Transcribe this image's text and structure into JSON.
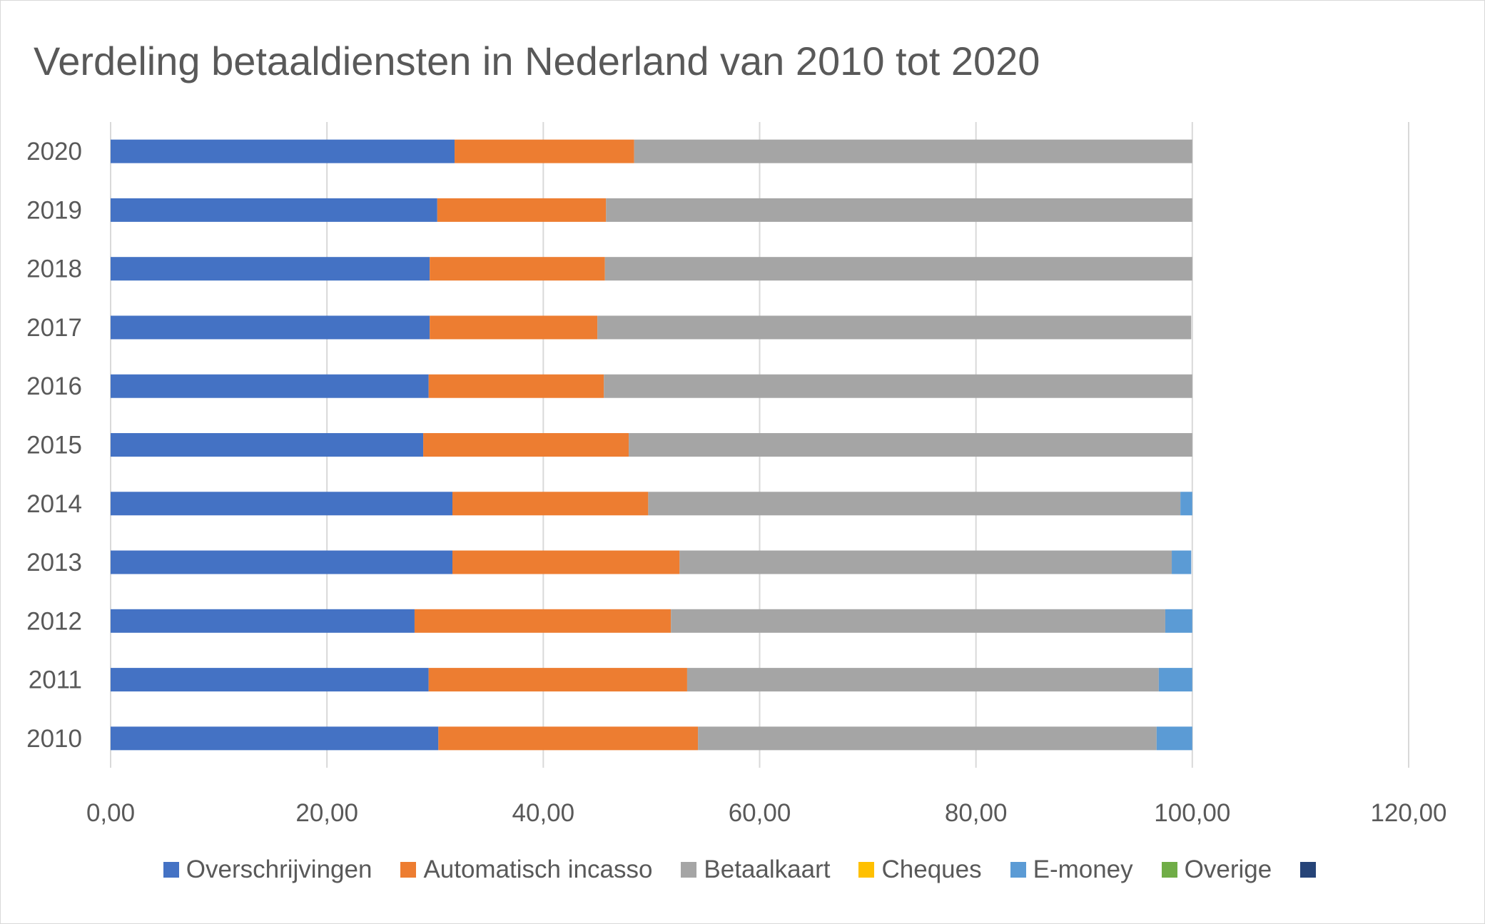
{
  "chart_data": {
    "type": "bar",
    "orientation": "horizontal",
    "stacked": true,
    "title": "Verdeling betaaldiensten in Nederland van 2010 tot 2020",
    "categories": [
      "2010",
      "2011",
      "2012",
      "2013",
      "2014",
      "2015",
      "2016",
      "2017",
      "2018",
      "2019",
      "2020"
    ],
    "xlim": [
      0,
      120
    ],
    "xticks": [
      "0,00",
      "20,00",
      "40,00",
      "60,00",
      "80,00",
      "100,00",
      "120,00"
    ],
    "grid": "vertical",
    "legend_position": "bottom",
    "series": [
      {
        "name": "Overschrijvingen",
        "color": "#4472C4",
        "values": [
          30.3,
          29.4,
          28.1,
          31.6,
          31.6,
          28.9,
          29.4,
          29.5,
          29.5,
          30.2,
          31.8
        ]
      },
      {
        "name": "Automatisch incasso",
        "color": "#ED7D31",
        "values": [
          24.0,
          23.9,
          23.7,
          21.0,
          18.1,
          19.0,
          16.2,
          15.5,
          16.2,
          15.6,
          16.6
        ]
      },
      {
        "name": "Betaalkaart",
        "color": "#A5A5A5",
        "values": [
          42.4,
          43.6,
          45.7,
          45.5,
          49.2,
          52.1,
          54.4,
          54.9,
          54.3,
          54.2,
          51.6
        ]
      },
      {
        "name": "Cheques",
        "color": "#FFC000",
        "values": [
          0,
          0,
          0,
          0,
          0,
          0,
          0,
          0,
          0,
          0,
          0
        ]
      },
      {
        "name": "E-money",
        "color": "#5B9BD5",
        "values": [
          3.3,
          3.1,
          2.5,
          1.8,
          1.1,
          0,
          0,
          0,
          0,
          0,
          0
        ]
      },
      {
        "name": "Overige",
        "color": "#70AD47",
        "values": [
          0,
          0,
          0,
          0,
          0,
          0,
          0,
          0,
          0,
          0,
          0
        ]
      },
      {
        "name": "",
        "color": "#264478",
        "values": [
          0,
          0,
          0,
          0,
          0,
          0,
          0,
          0,
          0,
          0,
          0
        ]
      }
    ]
  }
}
